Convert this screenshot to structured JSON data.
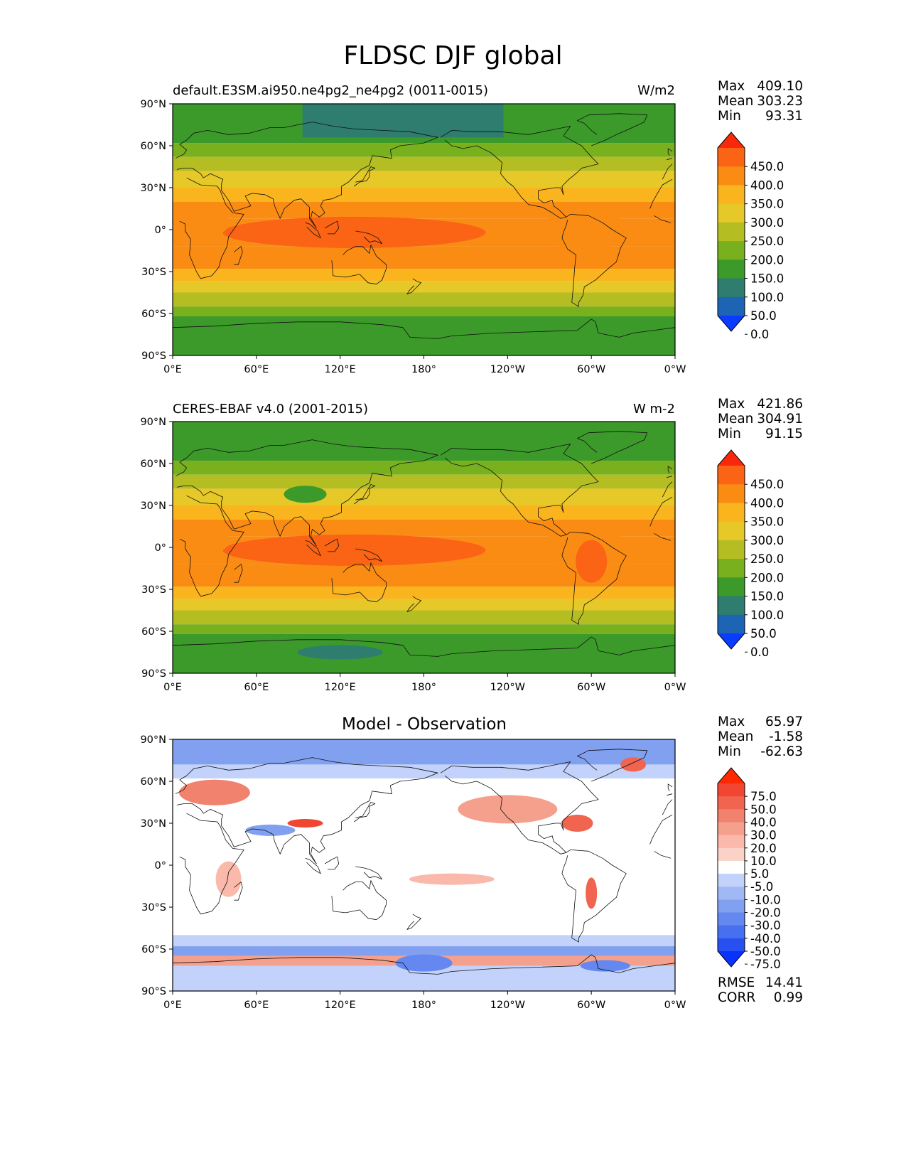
{
  "page_title": "FLDSC DJF global",
  "chart_data": [
    {
      "type": "heatmap",
      "title": "default.E3SM.ai950.ne4pg2_ne4pg2 (0011-0015)",
      "units": "W/m2",
      "stats": {
        "max_label": "Max",
        "max": "409.10",
        "mean_label": "Mean",
        "mean": "303.23",
        "min_label": "Min",
        "min": "93.31"
      },
      "x_ticks": [
        "0°E",
        "60°E",
        "120°E",
        "180°",
        "120°W",
        "60°W",
        "0°W"
      ],
      "y_ticks": [
        "90°N",
        "60°N",
        "30°N",
        "0°",
        "30°S",
        "60°S",
        "90°S"
      ],
      "colorbar_levels": [
        "450.0",
        "400.0",
        "350.0",
        "300.0",
        "250.0",
        "200.0",
        "150.0",
        "100.0",
        "50.0",
        "0.0"
      ],
      "colorbar_colors": [
        "#0a3cff",
        "#1e64b4",
        "#2e7d6e",
        "#3c9a2a",
        "#78b01e",
        "#b4be23",
        "#e6c828",
        "#fab41e",
        "#fa8c14",
        "#fa6414",
        "#fa280a"
      ]
    },
    {
      "type": "heatmap",
      "title": "CERES-EBAF v4.0 (2001-2015)",
      "units": "W m-2",
      "stats": {
        "max_label": "Max",
        "max": "421.86",
        "mean_label": "Mean",
        "mean": "304.91",
        "min_label": "Min",
        "min": "91.15"
      },
      "x_ticks": [
        "0°E",
        "60°E",
        "120°E",
        "180°",
        "120°W",
        "60°W",
        "0°W"
      ],
      "y_ticks": [
        "90°N",
        "60°N",
        "30°N",
        "0°",
        "30°S",
        "60°S",
        "90°S"
      ],
      "colorbar_levels": [
        "450.0",
        "400.0",
        "350.0",
        "300.0",
        "250.0",
        "200.0",
        "150.0",
        "100.0",
        "50.0",
        "0.0"
      ],
      "colorbar_colors": [
        "#0a3cff",
        "#1e64b4",
        "#2e7d6e",
        "#3c9a2a",
        "#78b01e",
        "#b4be23",
        "#e6c828",
        "#fab41e",
        "#fa8c14",
        "#fa6414",
        "#fa280a"
      ]
    },
    {
      "type": "heatmap",
      "title": "Model - Observation",
      "stats": {
        "max_label": "Max",
        "max": "65.97",
        "mean_label": "Mean",
        "mean": "-1.58",
        "min_label": "Min",
        "min": "-62.63"
      },
      "x_ticks": [
        "0°E",
        "60°E",
        "120°E",
        "180°",
        "120°W",
        "60°W",
        "0°W"
      ],
      "y_ticks": [
        "90°N",
        "60°N",
        "30°N",
        "0°",
        "30°S",
        "60°S",
        "90°S"
      ],
      "colorbar_levels": [
        "75.0",
        "50.0",
        "40.0",
        "30.0",
        "20.0",
        "10.0",
        "5.0",
        "-5.0",
        "-10.0",
        "-20.0",
        "-30.0",
        "-40.0",
        "-50.0",
        "-75.0"
      ],
      "colorbar_colors": [
        "#0a32ff",
        "#2850f0",
        "#4670f0",
        "#6487f0",
        "#82a0f0",
        "#a0b9f5",
        "#c3d2fa",
        "#ffffff",
        "#fad2c8",
        "#fab9aa",
        "#f5a08c",
        "#f0826e",
        "#f06450",
        "#f04632",
        "#ff2800"
      ],
      "rmse_label": "RMSE",
      "rmse": "14.41",
      "corr_label": "CORR",
      "corr": "0.99"
    }
  ]
}
